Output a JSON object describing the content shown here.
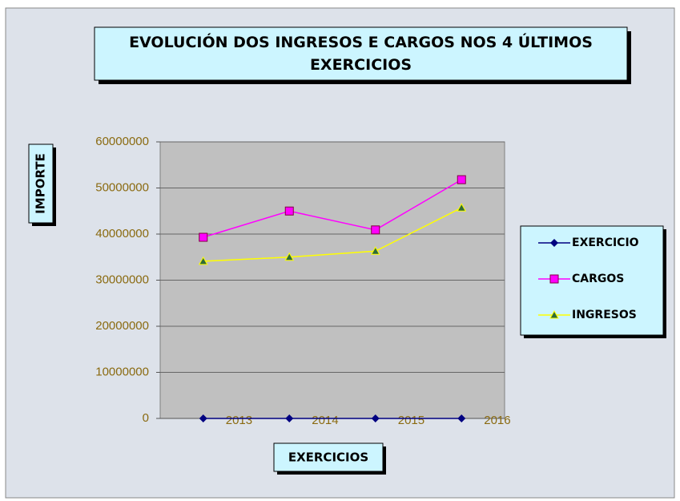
{
  "chart_data": {
    "type": "line",
    "title": "EVOLUCIÓN DOS INGRESOS E CARGOS NOS 4 ÚLTIMOS EXERCICIOS",
    "y_label": "IMPORTE",
    "x_label": "EXERCICIOS",
    "categories": [
      "2013",
      "2014",
      "2015",
      "2016"
    ],
    "series": [
      {
        "name": "EXERCICIO",
        "color": "#000080",
        "marker": "diamond",
        "values": [
          2013,
          2014,
          2015,
          2016
        ]
      },
      {
        "name": "CARGOS",
        "color": "#ff00ff",
        "marker": "square",
        "values": [
          39300000,
          45000000,
          40900000,
          51800000
        ]
      },
      {
        "name": "INGRESOS",
        "color": "#ffff00",
        "marker": "triangle",
        "values": [
          34100000,
          35000000,
          36300000,
          45700000
        ]
      }
    ],
    "ylim": [
      0,
      60000000
    ],
    "yticks": [
      0,
      10000000,
      20000000,
      30000000,
      40000000,
      50000000,
      60000000
    ],
    "grid": true,
    "legend": "right"
  }
}
